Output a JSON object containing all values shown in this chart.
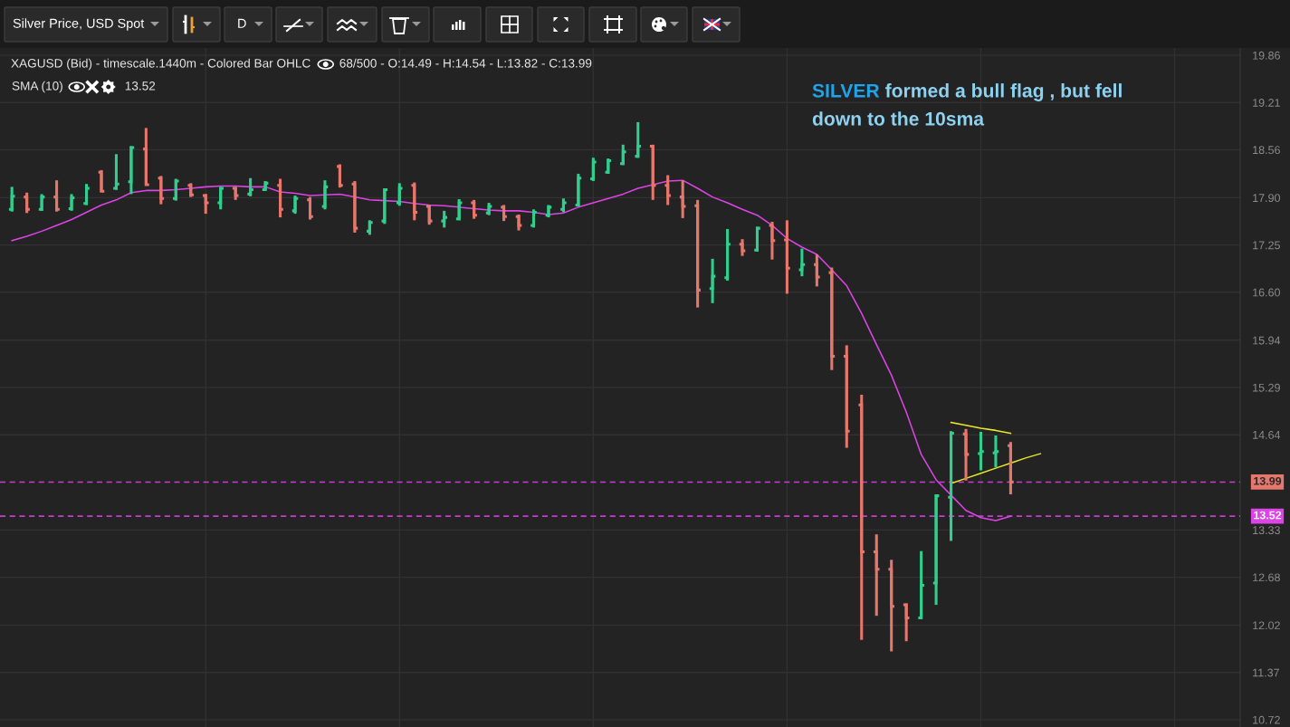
{
  "chart_data": {
    "type": "candlestick",
    "title": "Silver Price, USD Spot",
    "subtitle": "XAGUSD (Bid) - timescale.1440m - Colored Bar OHLC",
    "categories": [
      null,
      null,
      null,
      null,
      null,
      null,
      null,
      null,
      null,
      null,
      null,
      null,
      null,
      null,
      null,
      null,
      null,
      null,
      null,
      null,
      null,
      null,
      null,
      null,
      null,
      null,
      null,
      null,
      null,
      null,
      null,
      null,
      null,
      null,
      null,
      null,
      null,
      null,
      null,
      null,
      null,
      null,
      null,
      null,
      null,
      null,
      null,
      null,
      null,
      null,
      null,
      null,
      null,
      null,
      null,
      null,
      null,
      null,
      null,
      null,
      null,
      null,
      null,
      null,
      null,
      null,
      null,
      null,
      null,
      null,
      null,
      null,
      null,
      null,
      null,
      null,
      null,
      null,
      null,
      null,
      null,
      null,
      null
    ],
    "ohlc": [
      [
        17.74,
        18.05,
        17.71,
        17.92
      ],
      [
        17.91,
        17.97,
        17.69,
        17.74
      ],
      [
        17.74,
        17.95,
        17.72,
        17.91
      ],
      [
        17.91,
        18.14,
        17.71,
        17.74
      ],
      [
        17.75,
        17.95,
        17.72,
        17.9
      ],
      [
        17.82,
        18.09,
        17.8,
        18.03
      ],
      [
        18.25,
        18.28,
        17.98,
        17.99
      ],
      [
        18.03,
        18.5,
        18.01,
        18.09
      ],
      [
        18.12,
        18.61,
        17.95,
        18.59
      ],
      [
        18.57,
        18.86,
        18.07,
        18.08
      ],
      [
        18.17,
        18.2,
        17.81,
        17.89
      ],
      [
        17.89,
        18.16,
        17.86,
        18.13
      ],
      [
        18.07,
        18.1,
        17.91,
        17.94
      ],
      [
        17.93,
        17.95,
        17.68,
        17.83
      ],
      [
        17.83,
        18.05,
        17.74,
        18.03
      ],
      [
        18.03,
        18.05,
        17.87,
        17.93
      ],
      [
        17.95,
        18.17,
        17.92,
        18.01
      ],
      [
        18.01,
        18.13,
        18.0,
        18.1
      ],
      [
        18.07,
        18.16,
        17.63,
        17.74
      ],
      [
        17.72,
        17.93,
        17.68,
        17.89
      ],
      [
        17.87,
        17.91,
        17.6,
        17.64
      ],
      [
        17.78,
        18.14,
        17.74,
        18.05
      ],
      [
        18.33,
        18.36,
        18.04,
        18.07
      ],
      [
        18.09,
        18.13,
        17.42,
        17.48
      ],
      [
        17.44,
        17.59,
        17.39,
        17.56
      ],
      [
        17.58,
        18.03,
        17.54,
        18.01
      ],
      [
        17.83,
        18.1,
        17.79,
        18.03
      ],
      [
        18.07,
        18.11,
        17.59,
        17.7
      ],
      [
        17.78,
        17.8,
        17.53,
        17.58
      ],
      [
        17.58,
        17.72,
        17.49,
        17.63
      ],
      [
        17.61,
        17.88,
        17.59,
        17.83
      ],
      [
        17.83,
        17.87,
        17.61,
        17.66
      ],
      [
        17.69,
        17.83,
        17.66,
        17.78
      ],
      [
        17.77,
        17.8,
        17.58,
        17.64
      ],
      [
        17.64,
        17.67,
        17.45,
        17.52
      ],
      [
        17.52,
        17.74,
        17.49,
        17.7
      ],
      [
        17.66,
        17.8,
        17.63,
        17.77
      ],
      [
        17.74,
        17.89,
        17.7,
        17.83
      ],
      [
        17.8,
        18.23,
        17.78,
        18.17
      ],
      [
        18.16,
        18.45,
        18.13,
        18.39
      ],
      [
        18.25,
        18.44,
        18.23,
        18.41
      ],
      [
        18.37,
        18.63,
        18.35,
        18.53
      ],
      [
        18.47,
        18.94,
        18.45,
        18.61
      ],
      [
        18.61,
        18.63,
        17.87,
        18.07
      ],
      [
        18.07,
        18.21,
        17.8,
        17.93
      ],
      [
        17.91,
        18.14,
        17.62,
        17.78
      ],
      [
        17.79,
        17.87,
        16.39,
        16.63
      ],
      [
        16.65,
        17.06,
        16.45,
        16.82
      ],
      [
        16.8,
        17.47,
        16.76,
        17.26
      ],
      [
        17.26,
        17.33,
        17.1,
        17.17
      ],
      [
        17.18,
        17.5,
        17.16,
        17.48
      ],
      [
        17.52,
        17.57,
        17.05,
        17.31
      ],
      [
        17.32,
        17.59,
        16.58,
        16.93
      ],
      [
        16.91,
        17.2,
        16.82,
        16.98
      ],
      [
        16.98,
        17.12,
        16.68,
        16.81
      ],
      [
        16.87,
        16.94,
        15.53,
        15.72
      ],
      [
        15.72,
        15.87,
        14.46,
        14.69
      ],
      [
        15.05,
        15.19,
        11.82,
        13.03
      ],
      [
        13.03,
        13.27,
        12.15,
        12.79
      ],
      [
        12.79,
        12.92,
        11.66,
        12.28
      ],
      [
        12.3,
        12.32,
        11.8,
        12.12
      ],
      [
        12.12,
        13.04,
        12.11,
        12.57
      ],
      [
        12.6,
        13.82,
        12.3,
        13.8
      ],
      [
        13.78,
        14.69,
        13.18,
        14.66
      ],
      [
        14.65,
        14.72,
        14.01,
        14.37
      ],
      [
        14.38,
        14.68,
        14.15,
        14.41
      ],
      [
        14.39,
        14.63,
        14.19,
        14.41
      ],
      [
        14.49,
        14.54,
        13.82,
        13.99
      ],
      null,
      null,
      null,
      null,
      null,
      null,
      null,
      null,
      null,
      null,
      null,
      null,
      null,
      null,
      null
    ],
    "colors": [
      "#31cf8d",
      "#e5776c",
      "#31cf8d",
      "#e5776c",
      "#31cf8d",
      "#31cf8d",
      "#e5776c",
      "#31cf8d",
      "#31cf8d",
      "#e5776c",
      "#e5776c",
      "#31cf8d",
      "#e5776c",
      "#e5776c",
      "#31cf8d",
      "#e5776c",
      "#31cf8d",
      "#31cf8d",
      "#e5776c",
      "#31cf8d",
      "#e5776c",
      "#31cf8d",
      "#e5776c",
      "#e5776c",
      "#31cf8d",
      "#31cf8d",
      "#31cf8d",
      "#e5776c",
      "#e5776c",
      "#31cf8d",
      "#31cf8d",
      "#e5776c",
      "#31cf8d",
      "#e5776c",
      "#e5776c",
      "#31cf8d",
      "#31cf8d",
      "#31cf8d",
      "#31cf8d",
      "#31cf8d",
      "#31cf8d",
      "#31cf8d",
      "#31cf8d",
      "#e5776c",
      "#e5776c",
      "#e5776c",
      "#e5776c",
      "#31cf8d",
      "#31cf8d",
      "#e5776c",
      "#31cf8d",
      "#e5776c",
      "#e5776c",
      "#31cf8d",
      "#e5776c",
      "#e5776c",
      "#e5776c",
      "#e5776c",
      "#e5776c",
      "#e5776c",
      "#e5776c",
      "#31cf8d",
      "#31cf8d",
      "#31cf8d",
      "#e5776c",
      "#31cf8d",
      "#31cf8d",
      "#e5776c",
      null,
      null,
      null,
      null,
      null,
      null,
      null,
      null,
      null,
      null,
      null,
      null,
      null,
      null,
      null
    ],
    "series": [
      {
        "type": "line",
        "color": "#dd44e6",
        "values": [
          17.31,
          17.37,
          17.44,
          17.52,
          17.6,
          17.7,
          17.8,
          17.87,
          17.97,
          18.0,
          18.0,
          18.01,
          18.03,
          18.05,
          18.06,
          18.06,
          18.05,
          18.05,
          17.98,
          17.96,
          17.93,
          17.94,
          17.95,
          17.91,
          17.87,
          17.86,
          17.85,
          17.82,
          17.8,
          17.79,
          17.77,
          17.75,
          17.73,
          17.72,
          17.72,
          17.7,
          17.67,
          17.69,
          17.77,
          17.83,
          17.89,
          17.95,
          18.03,
          18.08,
          18.13,
          18.14,
          18.03,
          17.91,
          17.83,
          17.74,
          17.66,
          17.52,
          17.34,
          17.22,
          17.12,
          16.91,
          16.69,
          16.31,
          15.88,
          15.46,
          14.95,
          14.37,
          14.02,
          13.81,
          13.6,
          13.5,
          13.46,
          13.52,
          null,
          null,
          null,
          null,
          null,
          null,
          null,
          null,
          null,
          null,
          null,
          null,
          null,
          null,
          null
        ]
      },
      {
        "type": "line",
        "color": "#e8e82a",
        "values": [
          null,
          null,
          null,
          null,
          null,
          null,
          null,
          null,
          null,
          null,
          null,
          null,
          null,
          null,
          null,
          null,
          null,
          null,
          null,
          null,
          null,
          null,
          null,
          null,
          null,
          null,
          null,
          null,
          null,
          null,
          null,
          null,
          null,
          null,
          null,
          null,
          null,
          null,
          null,
          null,
          null,
          null,
          null,
          null,
          null,
          null,
          null,
          null,
          null,
          null,
          null,
          null,
          null,
          null,
          null,
          null,
          null,
          null,
          null,
          null,
          null,
          null,
          null,
          14.81,
          14.77,
          14.73,
          14.7,
          14.66,
          null,
          null,
          null,
          null,
          null,
          null,
          null,
          null,
          null,
          null,
          null,
          null,
          null,
          null,
          null
        ]
      },
      {
        "type": "line",
        "color": "#e8e82a",
        "values": [
          null,
          null,
          null,
          null,
          null,
          null,
          null,
          null,
          null,
          null,
          null,
          null,
          null,
          null,
          null,
          null,
          null,
          null,
          null,
          null,
          null,
          null,
          null,
          null,
          null,
          null,
          null,
          null,
          null,
          null,
          null,
          null,
          null,
          null,
          null,
          null,
          null,
          null,
          null,
          null,
          null,
          null,
          null,
          null,
          null,
          null,
          null,
          null,
          null,
          null,
          null,
          null,
          null,
          null,
          null,
          null,
          null,
          null,
          null,
          null,
          null,
          null,
          null,
          13.97,
          14.04,
          14.11,
          14.18,
          14.25,
          14.32,
          14.38,
          null,
          null,
          null,
          null,
          null,
          null,
          null,
          null,
          null,
          null,
          null,
          null,
          null
        ]
      }
    ],
    "ylim": [
      10.62,
      19.96
    ],
    "yticks": [
      10.72,
      11.37,
      12.02,
      12.68,
      13.33,
      14.64,
      15.29,
      15.94,
      {
        "value": 16.6,
        "label": "16.60"
      },
      17.25,
      {
        "value": 17.9,
        "label": "17.90"
      },
      18.56,
      19.21,
      19.86
    ],
    "ref_lines": [
      {
        "axis": "y",
        "value": 13.99,
        "label": "13.99",
        "color": "#c83cd2",
        "line_style": "dashed"
      },
      {
        "axis": "y",
        "value": 13.52,
        "label": "13.52",
        "color": "#c83cd2",
        "line_style": "dashed"
      }
    ],
    "annotations": [
      "D",
      "68/500 - O:14.49 - H:14.54 - L:13.82 - C:13.99",
      "SMA (10)",
      "13.52",
      "SILVER formed a bull flag , but fell down to the 10sma"
    ],
    "grid": true,
    "tick_labels": "y"
  }
}
